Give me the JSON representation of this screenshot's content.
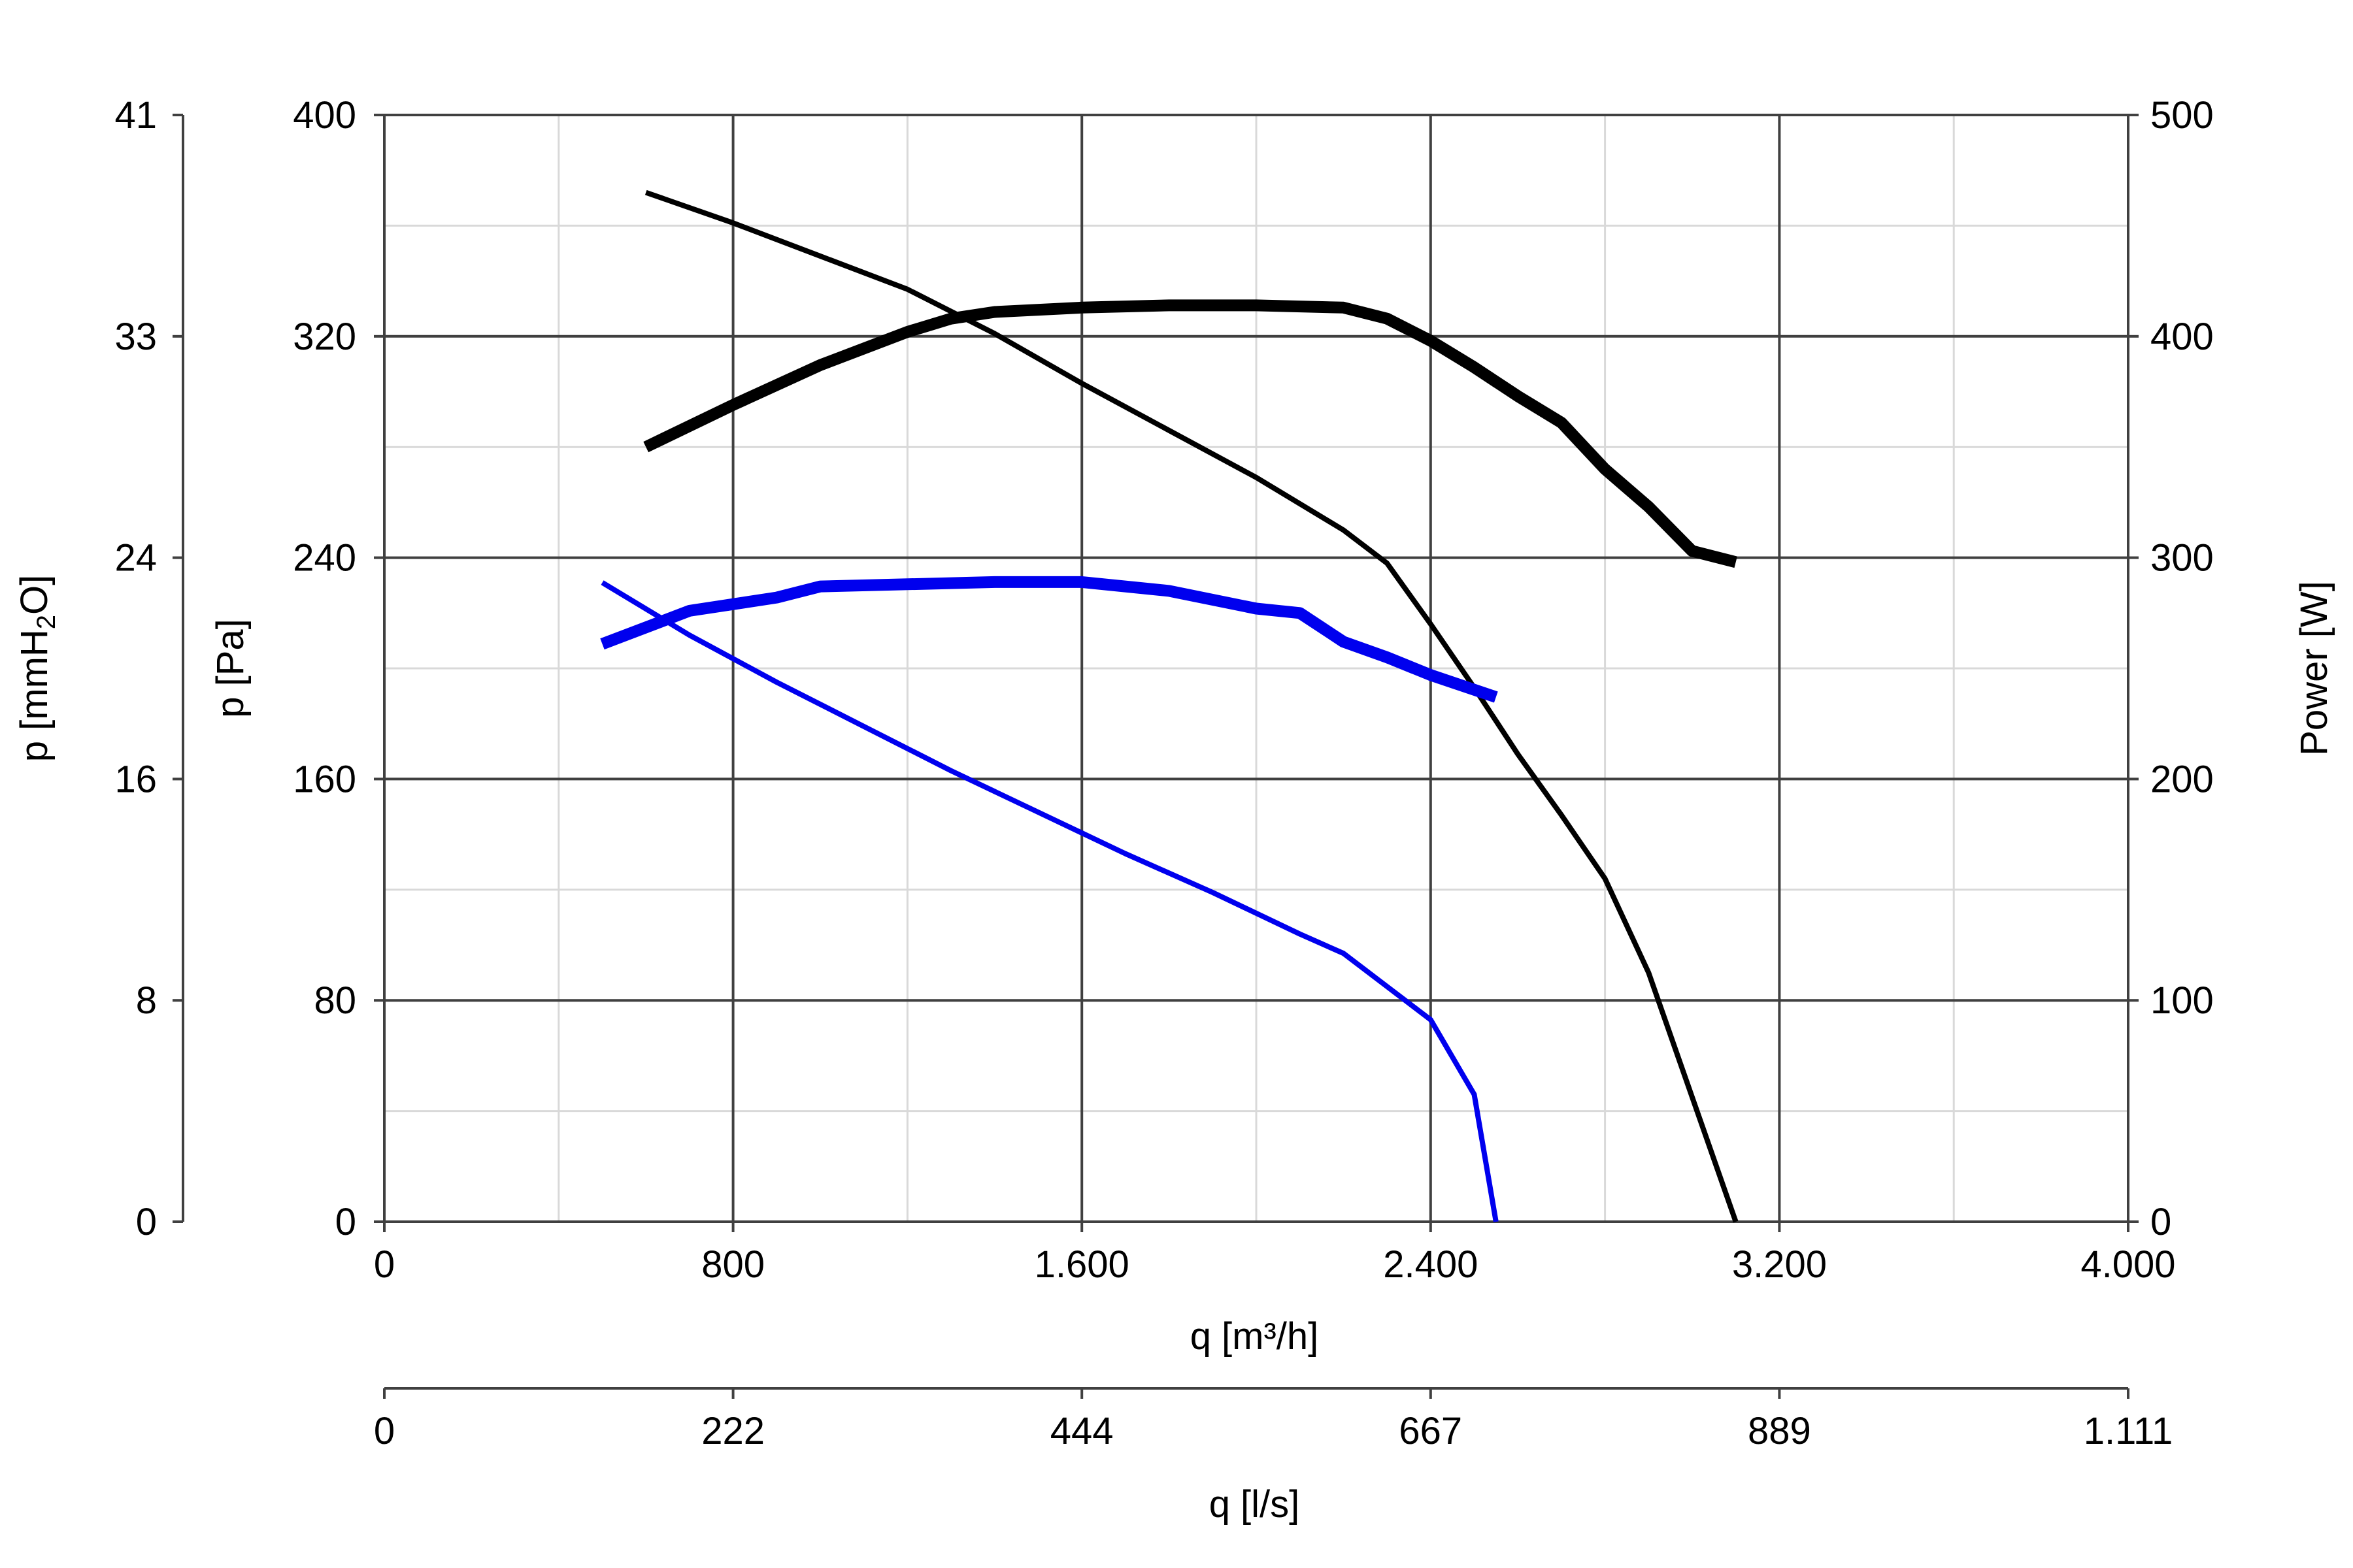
{
  "chart_data": {
    "type": "line",
    "x_axis": {
      "label": "q [m³/h]",
      "range": [
        0,
        4000
      ],
      "ticks": [
        0,
        800,
        1600,
        2400,
        3200,
        4000
      ],
      "tick_labels": [
        "0",
        "800",
        "1.600",
        "2.400",
        "3.200",
        "4.000"
      ]
    },
    "x2_axis": {
      "label": "q [l/s]",
      "tick_labels": [
        "0",
        "222",
        "444",
        "667",
        "889",
        "1.111"
      ]
    },
    "y_axis": {
      "label": "p [Pa]",
      "range": [
        0,
        400
      ],
      "ticks": [
        0,
        80,
        160,
        240,
        320,
        400
      ],
      "tick_labels": [
        "0",
        "80",
        "160",
        "240",
        "320",
        "400"
      ]
    },
    "y_axis_mmh2o": {
      "label_main": "p [mmH",
      "label_sub": "2",
      "label_end": "O]",
      "tick_labels": [
        "0",
        "8",
        "16",
        "24",
        "33",
        "41"
      ]
    },
    "y2_axis": {
      "label": "Power [W]",
      "range": [
        0,
        500
      ],
      "ticks": [
        0,
        100,
        200,
        300,
        400,
        500
      ],
      "tick_labels": [
        "0",
        "100",
        "200",
        "300",
        "400",
        "500"
      ]
    },
    "grid": true,
    "series": [
      {
        "axis": "pressure",
        "color": "#000000",
        "weight": "thin",
        "points": [
          [
            600,
            372
          ],
          [
            800,
            361
          ],
          [
            1000,
            349
          ],
          [
            1200,
            337
          ],
          [
            1400,
            321
          ],
          [
            1600,
            303
          ],
          [
            1800,
            286
          ],
          [
            2000,
            269
          ],
          [
            2200,
            250
          ],
          [
            2300,
            238
          ],
          [
            2400,
            216
          ],
          [
            2500,
            193
          ],
          [
            2600,
            169
          ],
          [
            2700,
            147
          ],
          [
            2800,
            124
          ],
          [
            2900,
            90
          ],
          [
            3000,
            45
          ],
          [
            3100,
            0
          ]
        ]
      },
      {
        "axis": "power",
        "color": "#000000",
        "weight": "thick",
        "points": [
          [
            600,
            350
          ],
          [
            800,
            369
          ],
          [
            1000,
            387
          ],
          [
            1200,
            402
          ],
          [
            1300,
            408
          ],
          [
            1400,
            411
          ],
          [
            1600,
            413
          ],
          [
            1800,
            414
          ],
          [
            2000,
            414
          ],
          [
            2200,
            413
          ],
          [
            2300,
            408
          ],
          [
            2400,
            398
          ],
          [
            2500,
            386
          ],
          [
            2600,
            373
          ],
          [
            2700,
            361
          ],
          [
            2800,
            340
          ],
          [
            2900,
            323
          ],
          [
            3000,
            303
          ],
          [
            3100,
            298
          ]
        ]
      },
      {
        "axis": "pressure",
        "color": "#0000ee",
        "weight": "thin",
        "points": [
          [
            500,
            231
          ],
          [
            700,
            212
          ],
          [
            900,
            195
          ],
          [
            1100,
            179
          ],
          [
            1300,
            163
          ],
          [
            1500,
            148
          ],
          [
            1700,
            133
          ],
          [
            1900,
            119
          ],
          [
            2100,
            104
          ],
          [
            2200,
            97
          ],
          [
            2300,
            85
          ],
          [
            2400,
            73
          ],
          [
            2500,
            46
          ],
          [
            2550,
            0
          ]
        ]
      },
      {
        "axis": "power",
        "color": "#0000ee",
        "weight": "thick",
        "points": [
          [
            500,
            261
          ],
          [
            700,
            276
          ],
          [
            900,
            282
          ],
          [
            1000,
            287
          ],
          [
            1200,
            288
          ],
          [
            1400,
            289
          ],
          [
            1600,
            289
          ],
          [
            1800,
            285
          ],
          [
            2000,
            277
          ],
          [
            2100,
            275
          ],
          [
            2200,
            262
          ],
          [
            2300,
            255
          ],
          [
            2400,
            247
          ],
          [
            2550,
            237
          ]
        ]
      }
    ]
  }
}
